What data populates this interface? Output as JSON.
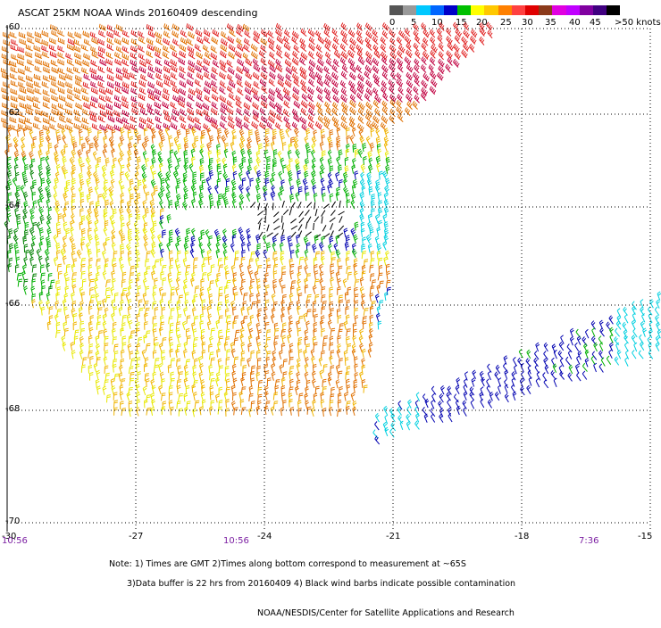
{
  "title": "ASCAT 25KM NOAA Winds 20160409 descending",
  "colorbar": {
    "colors": [
      "#555555",
      "#999999",
      "#00c8ff",
      "#0066ff",
      "#0000c8",
      "#00c000",
      "#ffff00",
      "#ffc800",
      "#ff8000",
      "#ff4040",
      "#e00000",
      "#8b3a1a",
      "#e000e0",
      "#c000ff",
      "#8000a0",
      "#400080",
      "#000000"
    ],
    "labels": [
      "0",
      "5",
      "10",
      "15",
      "20",
      "25",
      "30",
      "35",
      "40",
      "45",
      ">50 knots"
    ]
  },
  "axes": {
    "y_labels": [
      "-60",
      "-62",
      "-64",
      "-66",
      "-68",
      "-70"
    ],
    "x_labels": [
      "-30",
      "-27",
      "-24",
      "-21",
      "-18",
      "-15"
    ]
  },
  "times": [
    "10:56",
    "10:56",
    "7:36"
  ],
  "notes": {
    "line1": "Note: 1) Times are GMT 2)Times along bottom correspond to measurement at ~65S",
    "line2": "3)Data buffer is 22 hrs from 20160409 4) Black wind barbs indicate possible contamination",
    "line3": "NOAA/NESDIS/Center for Satellite Applications and Research"
  },
  "wind_palette": {
    "black": "#000000",
    "navy": "#0000b0",
    "cyan": "#00d0e0",
    "green": "#00b000",
    "darkgreen": "#008000",
    "yellow": "#e8e800",
    "gold": "#f0b400",
    "orange": "#e07000",
    "red": "#e02020",
    "crimson": "#c00040"
  }
}
